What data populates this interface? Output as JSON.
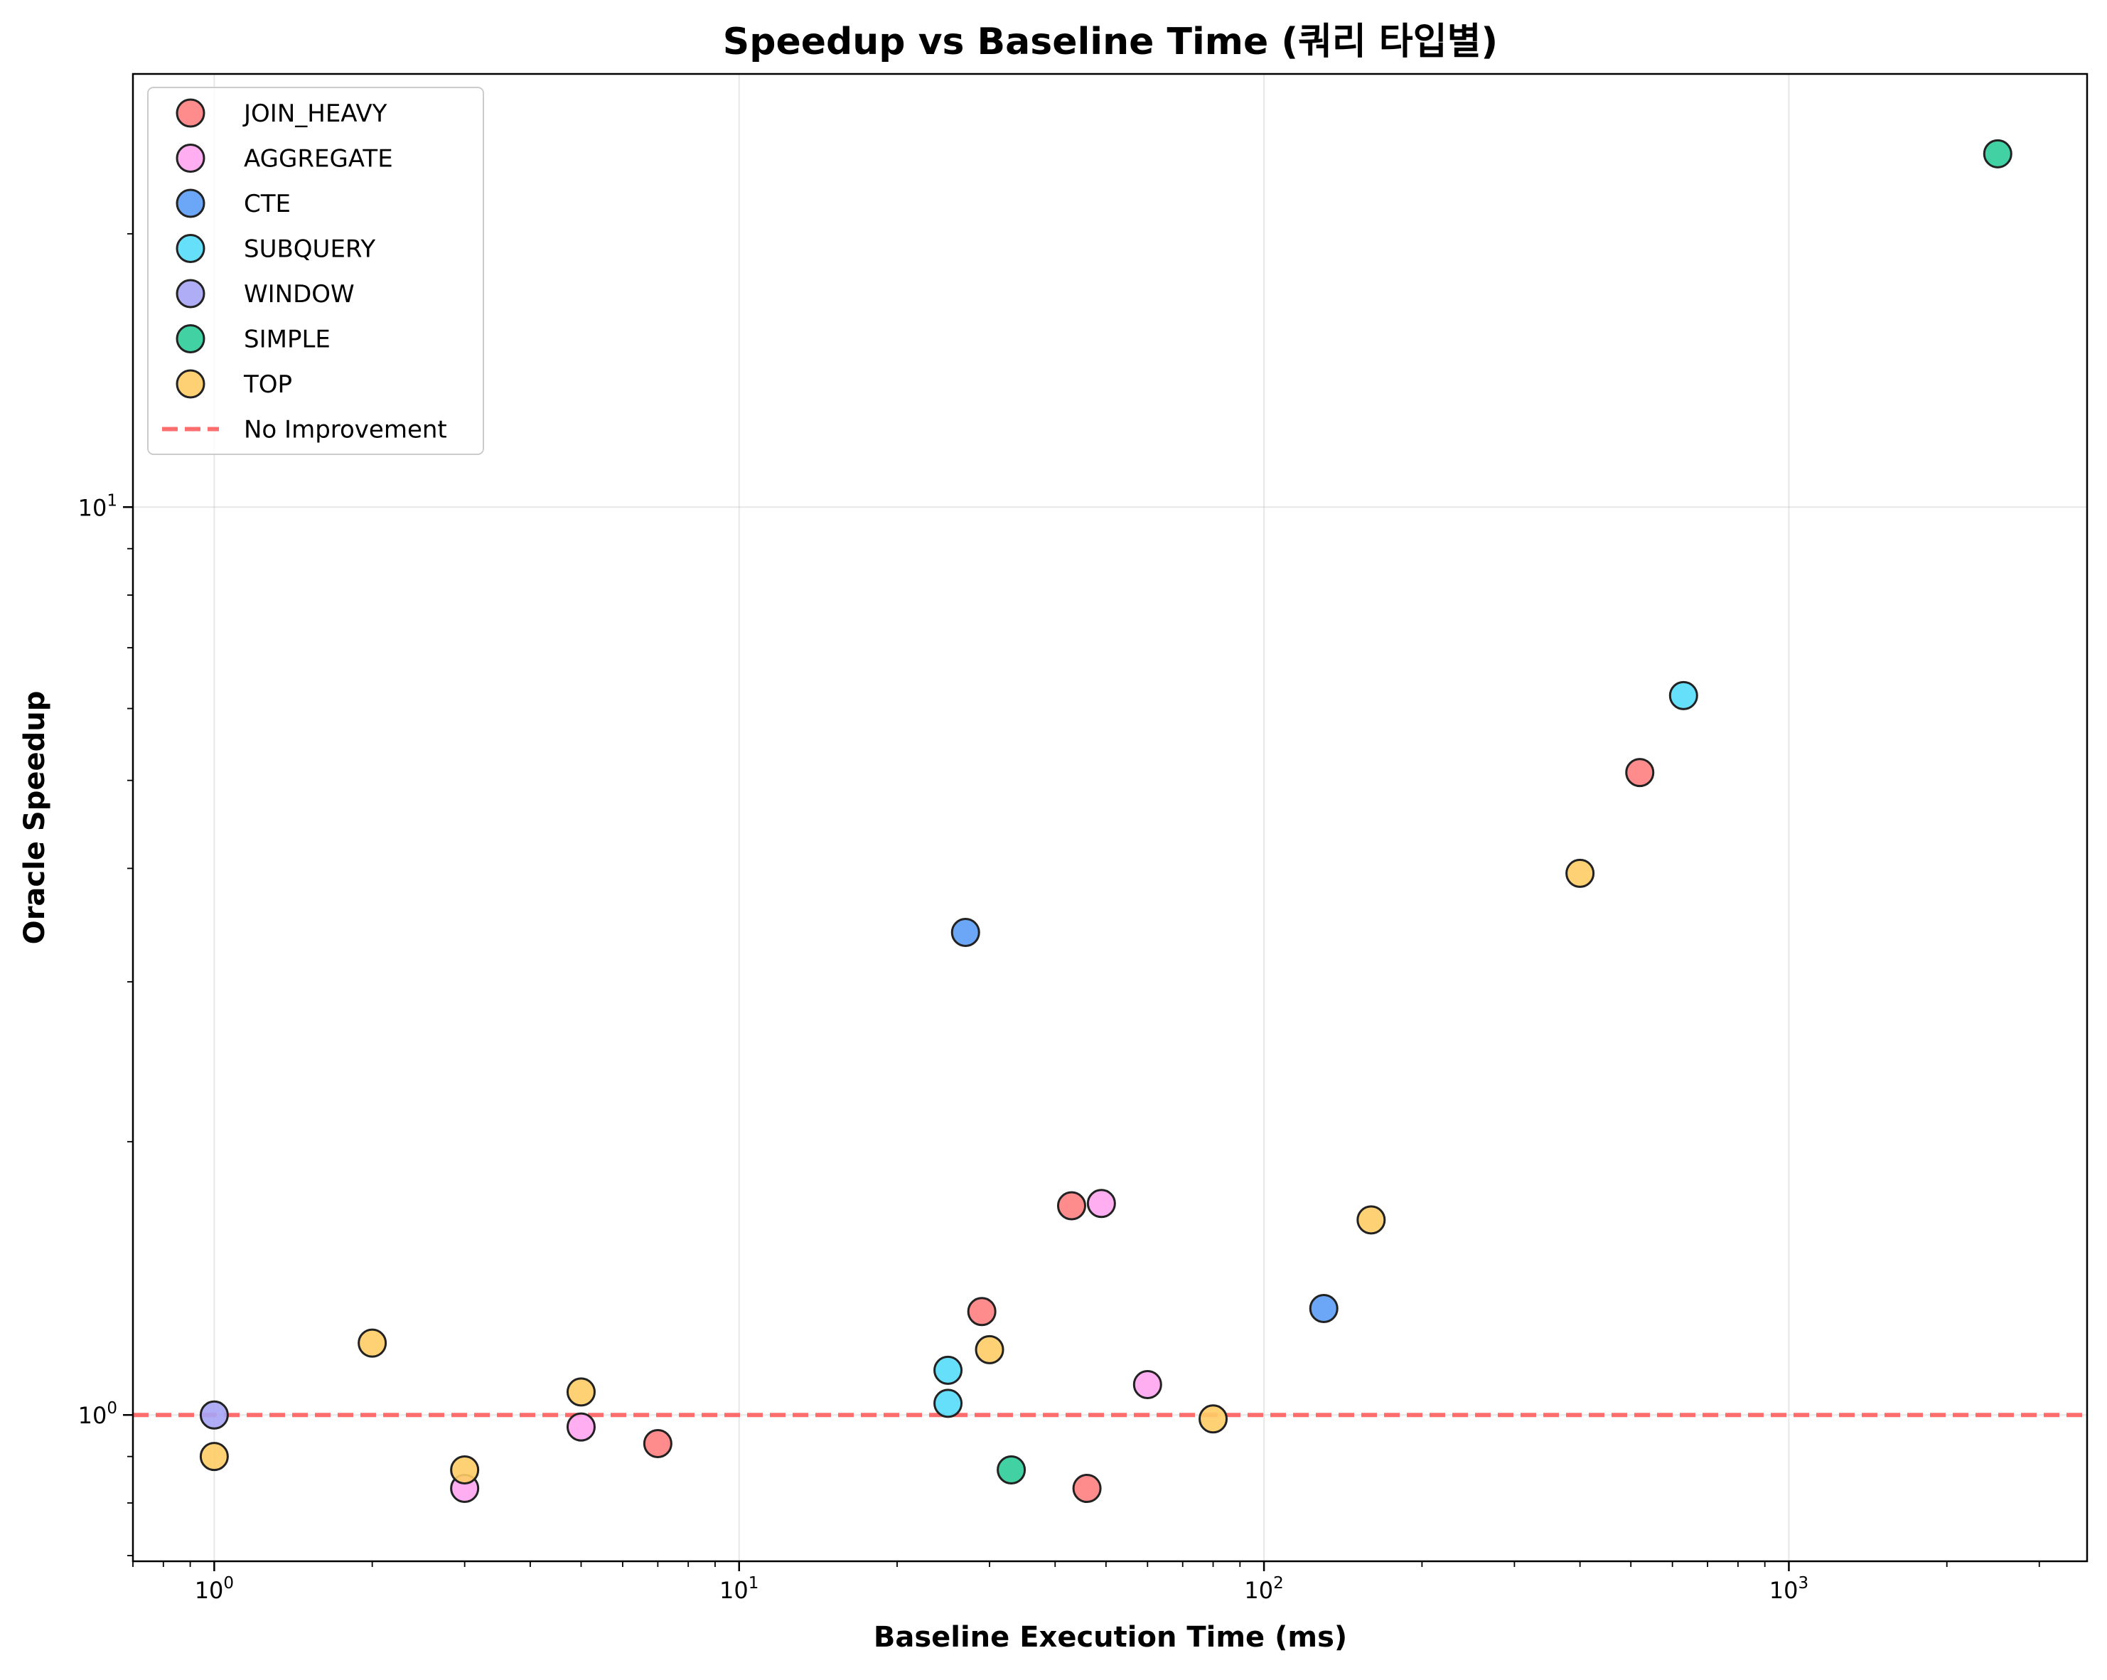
{
  "chart_data": {
    "type": "scatter",
    "title": "Speedup vs Baseline Time (쿼리 타입별)",
    "xlabel": "Baseline Execution Time (ms)",
    "ylabel": "Oracle Speedup",
    "xscale": "log",
    "yscale": "log",
    "xlim": [
      0.7,
      3700
    ],
    "ylim": [
      0.69,
      30
    ],
    "x_ticks": [
      {
        "base": "10",
        "exp": "0",
        "value": 1
      },
      {
        "base": "10",
        "exp": "1",
        "value": 10
      },
      {
        "base": "10",
        "exp": "2",
        "value": 100
      },
      {
        "base": "10",
        "exp": "3",
        "value": 1000
      }
    ],
    "y_ticks": [
      {
        "base": "10",
        "exp": "0",
        "value": 1
      },
      {
        "base": "10",
        "exp": "1",
        "value": 10
      }
    ],
    "grid": true,
    "legend_position": "top-left",
    "reference_line": {
      "label": "No Improvement",
      "y": 1.0,
      "color": "#ff5555",
      "style": "dashed"
    },
    "series": [
      {
        "name": "JOIN_HEAVY",
        "color": "#ff7f7f",
        "points": [
          [
            7,
            0.93
          ],
          [
            29,
            1.3
          ],
          [
            43,
            1.7
          ],
          [
            46,
            0.83
          ],
          [
            520,
            5.1
          ]
        ]
      },
      {
        "name": "AGGREGATE",
        "color": "#ffa6f0",
        "points": [
          [
            3,
            0.83
          ],
          [
            5,
            0.97
          ],
          [
            49,
            1.71
          ],
          [
            60,
            1.08
          ]
        ]
      },
      {
        "name": "CTE",
        "color": "#5c9cf5",
        "points": [
          [
            27,
            3.4
          ],
          [
            130,
            1.31
          ]
        ]
      },
      {
        "name": "SUBQUERY",
        "color": "#55ddf9",
        "points": [
          [
            25,
            1.12
          ],
          [
            25,
            1.03
          ],
          [
            630,
            6.2
          ]
        ]
      },
      {
        "name": "WINDOW",
        "color": "#a7a4f6",
        "points": [
          [
            1,
            1.0
          ]
        ]
      },
      {
        "name": "SIMPLE",
        "color": "#2ecc99",
        "points": [
          [
            33,
            0.87
          ],
          [
            2500,
            24.5
          ]
        ]
      },
      {
        "name": "TOP",
        "color": "#ffcc66",
        "points": [
          [
            1,
            0.9
          ],
          [
            2,
            1.2
          ],
          [
            3,
            0.87
          ],
          [
            5,
            1.06
          ],
          [
            30,
            1.18
          ],
          [
            80,
            0.99
          ],
          [
            160,
            1.64
          ],
          [
            400,
            3.95
          ]
        ]
      }
    ]
  }
}
